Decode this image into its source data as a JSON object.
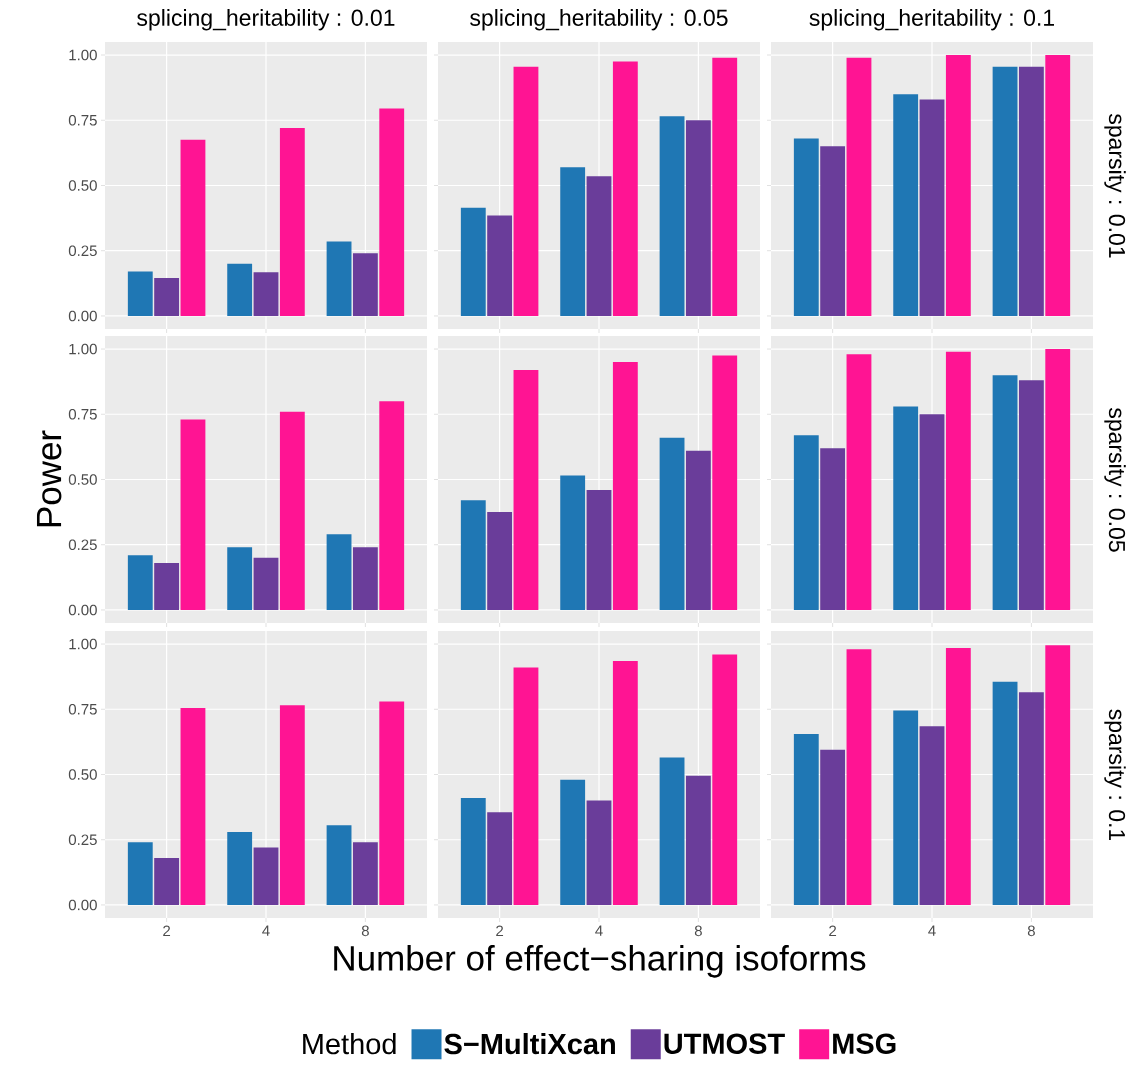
{
  "chart_data": [
    {
      "type": "bar",
      "title": "splicing_heritability : 0.01",
      "categories": [
        "2",
        "4",
        "8"
      ],
      "ylim": [
        -0.05,
        1.05
      ],
      "yticks": [
        {
          "value": 0,
          "label": "0.00"
        },
        {
          "value": 0.25,
          "label": "0.25"
        },
        {
          "value": 0.5,
          "label": "0.50"
        },
        {
          "value": 0.75,
          "label": "0.75"
        },
        {
          "value": 1,
          "label": "1.00"
        }
      ],
      "grid": true,
      "tick_labels": "y",
      "series": [
        {
          "color": "#1f77b4",
          "values": [
            0.17,
            0.2,
            0.285
          ]
        },
        {
          "color": "#6a3d9a",
          "values": [
            0.145,
            0.167,
            0.24
          ]
        },
        {
          "color": "#ff1493",
          "values": [
            0.675,
            0.72,
            0.795
          ]
        }
      ]
    },
    {
      "type": "bar",
      "title": "splicing_heritability : 0.05",
      "categories": [
        "2",
        "4",
        "8"
      ],
      "ylim": [
        -0.05,
        1.05
      ],
      "yticks": [
        {
          "value": 0,
          "label": null
        },
        {
          "value": 0.25,
          "label": null
        },
        {
          "value": 0.5,
          "label": null
        },
        {
          "value": 0.75,
          "label": null
        },
        {
          "value": 1,
          "label": null
        }
      ],
      "grid": true,
      "tick_labels": false,
      "series": [
        {
          "color": "#1f77b4",
          "values": [
            0.415,
            0.57,
            0.765
          ]
        },
        {
          "color": "#6a3d9a",
          "values": [
            0.385,
            0.535,
            0.75
          ]
        },
        {
          "color": "#ff1493",
          "values": [
            0.955,
            0.975,
            0.99
          ]
        }
      ]
    },
    {
      "type": "bar",
      "title": "splicing_heritability : 0.1",
      "y2label": "sparsity : 0.01",
      "categories": [
        "2",
        "4",
        "8"
      ],
      "ylim": [
        -0.05,
        1.05
      ],
      "yticks": [
        {
          "value": 0,
          "label": null
        },
        {
          "value": 0.25,
          "label": null
        },
        {
          "value": 0.5,
          "label": null
        },
        {
          "value": 0.75,
          "label": null
        },
        {
          "value": 1,
          "label": null
        }
      ],
      "grid": true,
      "tick_labels": false,
      "series": [
        {
          "color": "#1f77b4",
          "values": [
            0.68,
            0.85,
            0.955
          ]
        },
        {
          "color": "#6a3d9a",
          "values": [
            0.65,
            0.83,
            0.955
          ]
        },
        {
          "color": "#ff1493",
          "values": [
            0.99,
            1.0,
            1.0
          ]
        }
      ]
    },
    {
      "type": "bar",
      "ylabel": "Power",
      "categories": [
        "2",
        "4",
        "8"
      ],
      "ylim": [
        -0.05,
        1.05
      ],
      "yticks": [
        {
          "value": 0,
          "label": "0.00"
        },
        {
          "value": 0.25,
          "label": "0.25"
        },
        {
          "value": 0.5,
          "label": "0.50"
        },
        {
          "value": 0.75,
          "label": "0.75"
        },
        {
          "value": 1,
          "label": "1.00"
        }
      ],
      "grid": true,
      "tick_labels": "y",
      "series": [
        {
          "color": "#1f77b4",
          "values": [
            0.21,
            0.24,
            0.29
          ]
        },
        {
          "color": "#6a3d9a",
          "values": [
            0.18,
            0.2,
            0.24
          ]
        },
        {
          "color": "#ff1493",
          "values": [
            0.73,
            0.76,
            0.8
          ]
        }
      ]
    },
    {
      "type": "bar",
      "categories": [
        "2",
        "4",
        "8"
      ],
      "ylim": [
        -0.05,
        1.05
      ],
      "yticks": [
        {
          "value": 0,
          "label": null
        },
        {
          "value": 0.25,
          "label": null
        },
        {
          "value": 0.5,
          "label": null
        },
        {
          "value": 0.75,
          "label": null
        },
        {
          "value": 1,
          "label": null
        }
      ],
      "grid": true,
      "tick_labels": false,
      "series": [
        {
          "color": "#1f77b4",
          "values": [
            0.42,
            0.515,
            0.66
          ]
        },
        {
          "color": "#6a3d9a",
          "values": [
            0.375,
            0.46,
            0.61
          ]
        },
        {
          "color": "#ff1493",
          "values": [
            0.92,
            0.95,
            0.975
          ]
        }
      ]
    },
    {
      "type": "bar",
      "y2label": "sparsity : 0.05",
      "categories": [
        "2",
        "4",
        "8"
      ],
      "ylim": [
        -0.05,
        1.05
      ],
      "yticks": [
        {
          "value": 0,
          "label": null
        },
        {
          "value": 0.25,
          "label": null
        },
        {
          "value": 0.5,
          "label": null
        },
        {
          "value": 0.75,
          "label": null
        },
        {
          "value": 1,
          "label": null
        }
      ],
      "grid": true,
      "tick_labels": false,
      "series": [
        {
          "color": "#1f77b4",
          "values": [
            0.67,
            0.78,
            0.9
          ]
        },
        {
          "color": "#6a3d9a",
          "values": [
            0.62,
            0.75,
            0.88
          ]
        },
        {
          "color": "#ff1493",
          "values": [
            0.98,
            0.99,
            1.0
          ]
        }
      ]
    },
    {
      "type": "bar",
      "categories": [
        "2",
        "4",
        "8"
      ],
      "ylim": [
        -0.05,
        1.05
      ],
      "yticks": [
        {
          "value": 0,
          "label": "0.00"
        },
        {
          "value": 0.25,
          "label": "0.25"
        },
        {
          "value": 0.5,
          "label": "0.50"
        },
        {
          "value": 0.75,
          "label": "0.75"
        },
        {
          "value": 1,
          "label": "1.00"
        }
      ],
      "grid": true,
      "series": [
        {
          "color": "#1f77b4",
          "values": [
            0.24,
            0.28,
            0.305
          ]
        },
        {
          "color": "#6a3d9a",
          "values": [
            0.18,
            0.22,
            0.24
          ]
        },
        {
          "color": "#ff1493",
          "values": [
            0.755,
            0.765,
            0.78
          ]
        }
      ]
    },
    {
      "type": "bar",
      "xlabel": "Number of effect−sharing isoforms",
      "legend_title": "Method",
      "legend": "bottom",
      "categories": [
        "2",
        "4",
        "8"
      ],
      "ylim": [
        -0.05,
        1.05
      ],
      "yticks": [
        {
          "value": 0,
          "label": null
        },
        {
          "value": 0.25,
          "label": null
        },
        {
          "value": 0.5,
          "label": null
        },
        {
          "value": 0.75,
          "label": null
        },
        {
          "value": 1,
          "label": null
        }
      ],
      "grid": true,
      "tick_labels": "x",
      "series": [
        {
          "name": "S−MultiXcan",
          "color": "#1f77b4",
          "values": [
            0.41,
            0.48,
            0.565
          ]
        },
        {
          "name": "UTMOST",
          "color": "#6a3d9a",
          "values": [
            0.355,
            0.4,
            0.495
          ]
        },
        {
          "name": "MSG",
          "color": "#ff1493",
          "values": [
            0.91,
            0.935,
            0.96
          ]
        }
      ]
    },
    {
      "type": "bar",
      "y2label": "sparsity : 0.1",
      "categories": [
        "2",
        "4",
        "8"
      ],
      "ylim": [
        -0.05,
        1.05
      ],
      "yticks": [
        {
          "value": 0,
          "label": null
        },
        {
          "value": 0.25,
          "label": null
        },
        {
          "value": 0.5,
          "label": null
        },
        {
          "value": 0.75,
          "label": null
        },
        {
          "value": 1,
          "label": null
        }
      ],
      "grid": true,
      "tick_labels": "x",
      "series": [
        {
          "color": "#1f77b4",
          "values": [
            0.655,
            0.745,
            0.855
          ]
        },
        {
          "color": "#6a3d9a",
          "values": [
            0.595,
            0.685,
            0.815
          ]
        },
        {
          "color": "#ff1493",
          "values": [
            0.98,
            0.985,
            0.995
          ]
        }
      ]
    }
  ]
}
